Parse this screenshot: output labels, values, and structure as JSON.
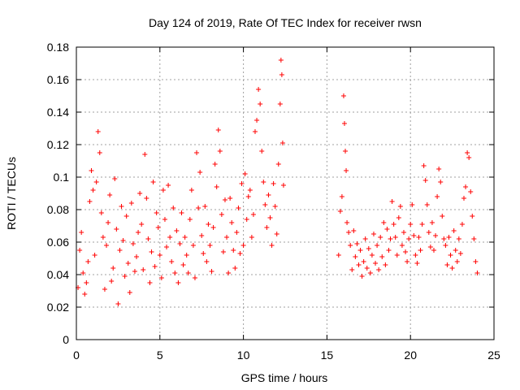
{
  "chart_data": {
    "type": "scatter",
    "title": "Day 124 of 2019, Rate Of TEC Index for receiver rwsn",
    "xlabel": "GPS time / hours",
    "ylabel": "ROTI / TECUs",
    "xlim": [
      0,
      25
    ],
    "ylim": [
      0,
      0.18
    ],
    "xticks": [
      0,
      5,
      10,
      15,
      20,
      25
    ],
    "xtick_labels": [
      "0",
      "5",
      "10",
      "15",
      "20",
      "25"
    ],
    "yticks": [
      0,
      0.02,
      0.04,
      0.06,
      0.08,
      0.1,
      0.12,
      0.14,
      0.16,
      0.18
    ],
    "ytick_labels": [
      "0",
      "0.02",
      "0.04",
      "0.06",
      "0.08",
      "0.1",
      "0.12",
      "0.14",
      "0.16",
      "0.18"
    ],
    "grid": true,
    "marker": "+",
    "color": "#ff0000",
    "series": [
      {
        "name": "ROTI",
        "note": "dense scatter; data gap between ~12.4 h and ~15.6 h",
        "points": [
          [
            0.1,
            0.032
          ],
          [
            0.2,
            0.055
          ],
          [
            0.3,
            0.066
          ],
          [
            0.4,
            0.041
          ],
          [
            0.5,
            0.028
          ],
          [
            0.6,
            0.035
          ],
          [
            0.7,
            0.048
          ],
          [
            0.8,
            0.085
          ],
          [
            0.9,
            0.104
          ],
          [
            1.0,
            0.092
          ],
          [
            1.1,
            0.052
          ],
          [
            1.2,
            0.097
          ],
          [
            1.3,
            0.128
          ],
          [
            1.4,
            0.115
          ],
          [
            1.5,
            0.078
          ],
          [
            1.6,
            0.063
          ],
          [
            1.7,
            0.031
          ],
          [
            1.8,
            0.058
          ],
          [
            1.9,
            0.072
          ],
          [
            2.0,
            0.089
          ],
          [
            2.1,
            0.036
          ],
          [
            2.2,
            0.044
          ],
          [
            2.3,
            0.099
          ],
          [
            2.4,
            0.068
          ],
          [
            2.5,
            0.022
          ],
          [
            2.6,
            0.055
          ],
          [
            2.7,
            0.082
          ],
          [
            2.8,
            0.061
          ],
          [
            2.9,
            0.039
          ],
          [
            3.0,
            0.076
          ],
          [
            3.1,
            0.047
          ],
          [
            3.2,
            0.029
          ],
          [
            3.3,
            0.084
          ],
          [
            3.4,
            0.059
          ],
          [
            3.5,
            0.042
          ],
          [
            3.6,
            0.051
          ],
          [
            3.7,
            0.066
          ],
          [
            3.8,
            0.09
          ],
          [
            3.9,
            0.071
          ],
          [
            4.0,
            0.043
          ],
          [
            4.1,
            0.114
          ],
          [
            4.2,
            0.087
          ],
          [
            4.3,
            0.062
          ],
          [
            4.4,
            0.035
          ],
          [
            4.5,
            0.054
          ],
          [
            4.6,
            0.097
          ],
          [
            4.7,
            0.045
          ],
          [
            4.8,
            0.078
          ],
          [
            4.9,
            0.069
          ],
          [
            5.0,
            0.052
          ],
          [
            5.1,
            0.038
          ],
          [
            5.2,
            0.092
          ],
          [
            5.3,
            0.074
          ],
          [
            5.4,
            0.057
          ],
          [
            5.5,
            0.095
          ],
          [
            5.6,
            0.063
          ],
          [
            5.7,
            0.048
          ],
          [
            5.8,
            0.081
          ],
          [
            5.9,
            0.041
          ],
          [
            6.0,
            0.067
          ],
          [
            6.1,
            0.035
          ],
          [
            6.2,
            0.059
          ],
          [
            6.3,
            0.078
          ],
          [
            6.4,
            0.046
          ],
          [
            6.5,
            0.063
          ],
          [
            6.6,
            0.052
          ],
          [
            6.7,
            0.041
          ],
          [
            6.8,
            0.074
          ],
          [
            6.9,
            0.092
          ],
          [
            7.0,
            0.058
          ],
          [
            7.1,
            0.038
          ],
          [
            7.2,
            0.115
          ],
          [
            7.3,
            0.081
          ],
          [
            7.4,
            0.103
          ],
          [
            7.5,
            0.064
          ],
          [
            7.6,
            0.053
          ],
          [
            7.7,
            0.082
          ],
          [
            7.8,
            0.048
          ],
          [
            7.9,
            0.071
          ],
          [
            8.0,
            0.058
          ],
          [
            8.1,
            0.042
          ],
          [
            8.2,
            0.069
          ],
          [
            8.3,
            0.108
          ],
          [
            8.4,
            0.094
          ],
          [
            8.5,
            0.129
          ],
          [
            8.6,
            0.116
          ],
          [
            8.7,
            0.077
          ],
          [
            8.8,
            0.054
          ],
          [
            8.9,
            0.086
          ],
          [
            9.0,
            0.063
          ],
          [
            9.1,
            0.041
          ],
          [
            9.2,
            0.087
          ],
          [
            9.3,
            0.072
          ],
          [
            9.4,
            0.055
          ],
          [
            9.5,
            0.044
          ],
          [
            9.6,
            0.066
          ],
          [
            9.7,
            0.081
          ],
          [
            9.8,
            0.053
          ],
          [
            9.9,
            0.096
          ],
          [
            10.0,
            0.058
          ],
          [
            10.1,
            0.102
          ],
          [
            10.2,
            0.074
          ],
          [
            10.3,
            0.088
          ],
          [
            10.4,
            0.092
          ],
          [
            10.5,
            0.063
          ],
          [
            10.6,
            0.077
          ],
          [
            10.7,
            0.128
          ],
          [
            10.8,
            0.135
          ],
          [
            10.9,
            0.154
          ],
          [
            11.0,
            0.145
          ],
          [
            11.1,
            0.116
          ],
          [
            11.2,
            0.097
          ],
          [
            11.3,
            0.083
          ],
          [
            11.4,
            0.069
          ],
          [
            11.5,
            0.089
          ],
          [
            11.6,
            0.075
          ],
          [
            11.7,
            0.058
          ],
          [
            11.8,
            0.096
          ],
          [
            11.9,
            0.082
          ],
          [
            12.0,
            0.065
          ],
          [
            12.1,
            0.108
          ],
          [
            12.2,
            0.145
          ],
          [
            12.25,
            0.172
          ],
          [
            12.3,
            0.163
          ],
          [
            12.35,
            0.121
          ],
          [
            12.4,
            0.095
          ],
          [
            15.7,
            0.052
          ],
          [
            15.8,
            0.079
          ],
          [
            15.9,
            0.088
          ],
          [
            16.0,
            0.15
          ],
          [
            16.05,
            0.133
          ],
          [
            16.1,
            0.116
          ],
          [
            16.15,
            0.104
          ],
          [
            16.2,
            0.072
          ],
          [
            16.3,
            0.066
          ],
          [
            16.4,
            0.058
          ],
          [
            16.5,
            0.043
          ],
          [
            16.6,
            0.067
          ],
          [
            16.7,
            0.051
          ],
          [
            16.8,
            0.059
          ],
          [
            16.9,
            0.046
          ],
          [
            17.0,
            0.055
          ],
          [
            17.1,
            0.039
          ],
          [
            17.2,
            0.048
          ],
          [
            17.3,
            0.062
          ],
          [
            17.4,
            0.044
          ],
          [
            17.5,
            0.056
          ],
          [
            17.6,
            0.041
          ],
          [
            17.7,
            0.052
          ],
          [
            17.8,
            0.065
          ],
          [
            17.9,
            0.047
          ],
          [
            18.0,
            0.058
          ],
          [
            18.1,
            0.043
          ],
          [
            18.2,
            0.063
          ],
          [
            18.3,
            0.051
          ],
          [
            18.4,
            0.072
          ],
          [
            18.5,
            0.046
          ],
          [
            18.6,
            0.068
          ],
          [
            18.7,
            0.055
          ],
          [
            18.8,
            0.062
          ],
          [
            18.9,
            0.085
          ],
          [
            19.0,
            0.071
          ],
          [
            19.1,
            0.063
          ],
          [
            19.2,
            0.052
          ],
          [
            19.3,
            0.075
          ],
          [
            19.4,
            0.082
          ],
          [
            19.5,
            0.058
          ],
          [
            19.6,
            0.066
          ],
          [
            19.7,
            0.054
          ],
          [
            19.8,
            0.048
          ],
          [
            19.9,
            0.062
          ],
          [
            20.0,
            0.071
          ],
          [
            20.1,
            0.083
          ],
          [
            20.2,
            0.064
          ],
          [
            20.3,
            0.052
          ],
          [
            20.4,
            0.047
          ],
          [
            20.5,
            0.063
          ],
          [
            20.6,
            0.055
          ],
          [
            20.7,
            0.071
          ],
          [
            20.8,
            0.107
          ],
          [
            20.9,
            0.098
          ],
          [
            21.0,
            0.083
          ],
          [
            21.1,
            0.066
          ],
          [
            21.2,
            0.057
          ],
          [
            21.3,
            0.072
          ],
          [
            21.4,
            0.055
          ],
          [
            21.5,
            0.064
          ],
          [
            21.6,
            0.088
          ],
          [
            21.7,
            0.105
          ],
          [
            21.8,
            0.097
          ],
          [
            21.9,
            0.076
          ],
          [
            22.0,
            0.062
          ],
          [
            22.1,
            0.058
          ],
          [
            22.2,
            0.046
          ],
          [
            22.3,
            0.063
          ],
          [
            22.4,
            0.052
          ],
          [
            22.5,
            0.044
          ],
          [
            22.6,
            0.067
          ],
          [
            22.7,
            0.055
          ],
          [
            22.8,
            0.048
          ],
          [
            22.9,
            0.062
          ],
          [
            23.0,
            0.053
          ],
          [
            23.1,
            0.071
          ],
          [
            23.2,
            0.087
          ],
          [
            23.3,
            0.094
          ],
          [
            23.4,
            0.115
          ],
          [
            23.5,
            0.112
          ],
          [
            23.6,
            0.091
          ],
          [
            23.7,
            0.076
          ],
          [
            23.8,
            0.062
          ],
          [
            23.9,
            0.048
          ],
          [
            24.0,
            0.041
          ]
        ]
      }
    ]
  }
}
